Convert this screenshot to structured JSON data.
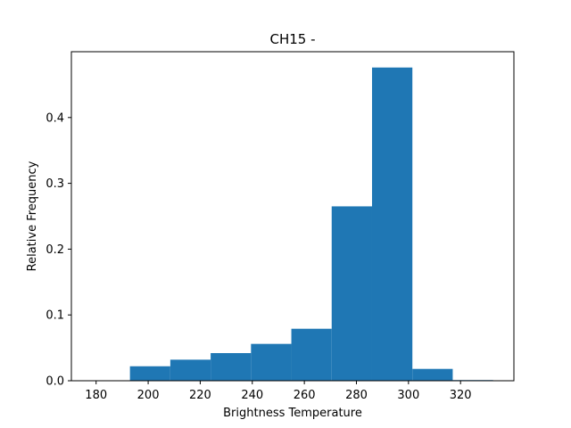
{
  "chart_data": {
    "type": "bar",
    "title": "CH15 -",
    "xlabel": "Brightness Temperature",
    "ylabel": "Relative Frequency",
    "xlim": [
      170.5,
      340.5
    ],
    "ylim": [
      0,
      0.5
    ],
    "x_ticks": [
      180,
      200,
      220,
      240,
      260,
      280,
      300,
      320
    ],
    "y_ticks": [
      0.0,
      0.1,
      0.2,
      0.3,
      0.4
    ],
    "y_tick_labels": [
      "0.0",
      "0.1",
      "0.2",
      "0.3",
      "0.4"
    ],
    "bar_color": "#1f77b4",
    "grid": false,
    "legend": "none",
    "bins": [
      {
        "x0": 177,
        "x1": 193,
        "value": 0.0
      },
      {
        "x0": 193,
        "x1": 208.5,
        "value": 0.022
      },
      {
        "x0": 208.5,
        "x1": 224,
        "value": 0.032
      },
      {
        "x0": 224,
        "x1": 239.5,
        "value": 0.042
      },
      {
        "x0": 239.5,
        "x1": 255,
        "value": 0.056
      },
      {
        "x0": 255,
        "x1": 270.5,
        "value": 0.079
      },
      {
        "x0": 270.5,
        "x1": 286,
        "value": 0.265
      },
      {
        "x0": 286,
        "x1": 301.5,
        "value": 0.476
      },
      {
        "x0": 301.5,
        "x1": 317,
        "value": 0.018
      },
      {
        "x0": 317,
        "x1": 332.5,
        "value": 0.001
      }
    ]
  }
}
